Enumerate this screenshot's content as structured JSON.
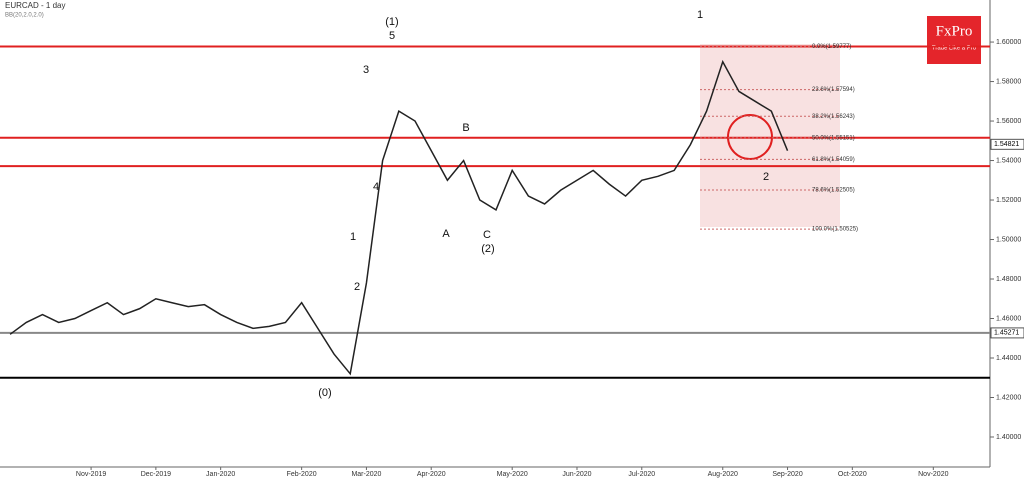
{
  "chart_data": {
    "type": "line",
    "title": "EURCAD - 1 day",
    "subtitle": "BB(20,2.0,2.0)",
    "brand": "FxPro",
    "slogan": "Trade Like a Pro",
    "categories": [
      null,
      null,
      null,
      null,
      null,
      "Nov-2019",
      null,
      null,
      null,
      "Dec-2019",
      null,
      null,
      null,
      "Jan-2020",
      null,
      null,
      null,
      null,
      "Feb-2020",
      null,
      null,
      null,
      "Mar-2020",
      null,
      null,
      null,
      "Apr-2020",
      null,
      null,
      null,
      null,
      "May-2020",
      null,
      null,
      null,
      "Jun-2020",
      null,
      null,
      null,
      "Jul-2020",
      null,
      null,
      null,
      null,
      "Aug-2020",
      null,
      null,
      null,
      "Sep-2020",
      null,
      null,
      null,
      "Oct-2020",
      null,
      null,
      null,
      null,
      "Nov-2020",
      null,
      null,
      null
    ],
    "series": [
      {
        "name": "EURCAD",
        "color": "#222222",
        "values": [
          1.452,
          1.458,
          1.462,
          1.458,
          1.46,
          1.464,
          1.468,
          1.462,
          1.465,
          1.47,
          1.468,
          1.466,
          1.467,
          1.462,
          1.458,
          1.455,
          1.456,
          1.458,
          1.468,
          1.455,
          1.442,
          1.432,
          1.478,
          1.54,
          1.565,
          1.56,
          1.545,
          1.53,
          1.54,
          1.52,
          1.515,
          1.535,
          1.522,
          1.518,
          1.525,
          1.53,
          1.535,
          1.528,
          1.522,
          1.53,
          1.532,
          1.535,
          1.548,
          1.565,
          1.59,
          1.575,
          1.57,
          1.565,
          1.545,
          null,
          null,
          null,
          null,
          null,
          null,
          null,
          null,
          null,
          null,
          null,
          null
        ]
      }
    ],
    "ylim": [
      1.3848,
      1.6213
    ],
    "yticks": [
      {
        "value": 1.4,
        "label": "1.40000"
      },
      {
        "value": 1.42,
        "label": "1.42000"
      },
      {
        "value": 1.44,
        "label": "1.44000"
      },
      {
        "value": 1.46,
        "label": "1.46000"
      },
      {
        "value": 1.48,
        "label": "1.48000"
      },
      {
        "value": 1.5,
        "label": "1.50000"
      },
      {
        "value": 1.52,
        "label": "1.52000"
      },
      {
        "value": 1.54,
        "label": "1.54000"
      },
      {
        "value": 1.56,
        "label": "1.56000"
      },
      {
        "value": 1.58,
        "label": "1.58000"
      },
      {
        "value": 1.6,
        "label": "1.60000"
      }
    ],
    "levels": [
      {
        "value": 1.59777,
        "color": "#e02020"
      },
      {
        "value": 1.55151,
        "color": "#e02020"
      },
      {
        "value": 1.5372,
        "color": "#e02020"
      },
      {
        "value": 1.43,
        "color": "#000000"
      },
      {
        "value": 1.45271,
        "color": "#888888"
      }
    ],
    "price_labels": [
      1.54821,
      1.45271
    ],
    "fib": [
      {
        "value": 1.59777,
        "label": "0.0%(1.59777)"
      },
      {
        "value": 1.57594,
        "label": "23.6%(1.57594)"
      },
      {
        "value": 1.56243,
        "label": "38.2%(1.56243)"
      },
      {
        "value": 1.55151,
        "label": "50.0%(1.55151)"
      },
      {
        "value": 1.54059,
        "label": "61.8%(1.54059)"
      },
      {
        "value": 1.52505,
        "label": "78.6%(1.52505)"
      },
      {
        "value": 1.50525,
        "label": "100.0%(1.50525)"
      }
    ],
    "waves": [
      "(1)",
      "5",
      "3",
      "4",
      "1",
      "2",
      "(0)",
      "A",
      "B",
      "C",
      "(2)",
      "1",
      "2"
    ]
  }
}
